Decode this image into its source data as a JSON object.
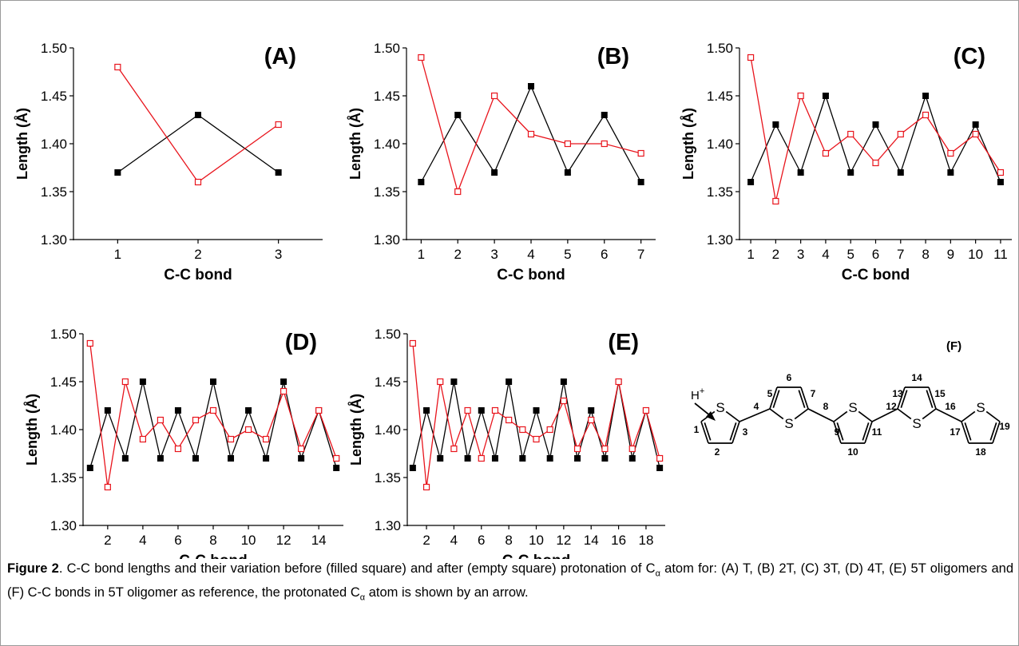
{
  "chart_data": [
    {
      "type": "line",
      "title": "(A)",
      "xlabel": "C-C bond",
      "ylabel": "Length (Å)",
      "ylim": [
        1.3,
        1.5
      ],
      "yticks": [
        "1.30",
        "1.35",
        "1.40",
        "1.45",
        "1.50"
      ],
      "xticks": [
        1,
        2,
        3
      ],
      "x": [
        1,
        2,
        3
      ],
      "series": [
        {
          "marker": "filled-square",
          "color": "#000000",
          "values": [
            1.37,
            1.43,
            1.37
          ]
        },
        {
          "marker": "empty-square",
          "color": "#e8141c",
          "values": [
            1.48,
            1.36,
            1.42
          ]
        }
      ]
    },
    {
      "type": "line",
      "title": "(B)",
      "xlabel": "C-C bond",
      "ylabel": "Length (Å)",
      "ylim": [
        1.3,
        1.5
      ],
      "yticks": [
        "1.30",
        "1.35",
        "1.40",
        "1.45",
        "1.50"
      ],
      "xticks": [
        1,
        2,
        3,
        4,
        5,
        6,
        7
      ],
      "x": [
        1,
        2,
        3,
        4,
        5,
        6,
        7
      ],
      "series": [
        {
          "marker": "filled-square",
          "color": "#000000",
          "values": [
            1.36,
            1.43,
            1.37,
            1.46,
            1.37,
            1.43,
            1.36
          ]
        },
        {
          "marker": "empty-square",
          "color": "#e8141c",
          "values": [
            1.49,
            1.35,
            1.45,
            1.41,
            1.4,
            1.4,
            1.39
          ]
        }
      ]
    },
    {
      "type": "line",
      "title": "(C)",
      "xlabel": "C-C bond",
      "ylabel": "Length (Å)",
      "ylim": [
        1.3,
        1.5
      ],
      "yticks": [
        "1.30",
        "1.35",
        "1.40",
        "1.45",
        "1.50"
      ],
      "xticks": [
        1,
        2,
        3,
        4,
        5,
        6,
        7,
        8,
        9,
        10,
        11
      ],
      "x": [
        1,
        2,
        3,
        4,
        5,
        6,
        7,
        8,
        9,
        10,
        11
      ],
      "series": [
        {
          "marker": "filled-square",
          "color": "#000000",
          "values": [
            1.36,
            1.42,
            1.37,
            1.45,
            1.37,
            1.42,
            1.37,
            1.45,
            1.37,
            1.42,
            1.36
          ]
        },
        {
          "marker": "empty-square",
          "color": "#e8141c",
          "values": [
            1.49,
            1.34,
            1.45,
            1.39,
            1.41,
            1.38,
            1.41,
            1.43,
            1.39,
            1.41,
            1.37
          ]
        }
      ]
    },
    {
      "type": "line",
      "title": "(D)",
      "xlabel": "C-C bond",
      "ylabel": "Length (Å)",
      "ylim": [
        1.3,
        1.5
      ],
      "yticks": [
        "1.30",
        "1.35",
        "1.40",
        "1.45",
        "1.50"
      ],
      "xticks": [
        2,
        4,
        6,
        8,
        10,
        12,
        14
      ],
      "x": [
        1,
        2,
        3,
        4,
        5,
        6,
        7,
        8,
        9,
        10,
        11,
        12,
        13,
        14,
        15
      ],
      "series": [
        {
          "marker": "filled-square",
          "color": "#000000",
          "values": [
            1.36,
            1.42,
            1.37,
            1.45,
            1.37,
            1.42,
            1.37,
            1.45,
            1.37,
            1.42,
            1.37,
            1.45,
            1.37,
            1.42,
            1.36
          ]
        },
        {
          "marker": "empty-square",
          "color": "#e8141c",
          "values": [
            1.49,
            1.34,
            1.45,
            1.39,
            1.41,
            1.38,
            1.41,
            1.42,
            1.39,
            1.4,
            1.39,
            1.44,
            1.38,
            1.42,
            1.37
          ]
        }
      ]
    },
    {
      "type": "line",
      "title": "(E)",
      "xlabel": "C-C bond",
      "ylabel": "Length (Å)",
      "ylim": [
        1.3,
        1.5
      ],
      "yticks": [
        "1.30",
        "1.35",
        "1.40",
        "1.45",
        "1.50"
      ],
      "xticks": [
        2,
        4,
        6,
        8,
        10,
        12,
        14,
        16,
        18
      ],
      "x": [
        1,
        2,
        3,
        4,
        5,
        6,
        7,
        8,
        9,
        10,
        11,
        12,
        13,
        14,
        15,
        16,
        17,
        18,
        19
      ],
      "series": [
        {
          "marker": "filled-square",
          "color": "#000000",
          "values": [
            1.36,
            1.42,
            1.37,
            1.45,
            1.37,
            1.42,
            1.37,
            1.45,
            1.37,
            1.42,
            1.37,
            1.45,
            1.37,
            1.42,
            1.37,
            1.45,
            1.37,
            1.42,
            1.36
          ]
        },
        {
          "marker": "empty-square",
          "color": "#e8141c",
          "values": [
            1.49,
            1.34,
            1.45,
            1.38,
            1.42,
            1.37,
            1.42,
            1.41,
            1.4,
            1.39,
            1.4,
            1.43,
            1.38,
            1.41,
            1.38,
            1.45,
            1.38,
            1.42,
            1.37
          ]
        }
      ]
    }
  ],
  "panel_f": {
    "title": "(F)",
    "proton_label": "H",
    "proton_charge": "+",
    "sulfur_label": "S",
    "bond_numbers": [
      "1",
      "2",
      "3",
      "4",
      "5",
      "6",
      "7",
      "8",
      "9",
      "10",
      "11",
      "12",
      "13",
      "14",
      "15",
      "16",
      "17",
      "18",
      "19"
    ]
  },
  "caption": {
    "lead": "Figure 2",
    "text_1": ". C-C bond lengths and their variation before (filled square) and after (empty square) protonation of C",
    "alpha_1": "α",
    "text_2": " atom for: (A) T, (B) 2T, (C) 3T, (D) 4T, (E) 5T oligomers and (F) C-C bonds in 5T oligomer as reference, the protonated C",
    "alpha_2": "α",
    "text_3": " atom is shown by an arrow."
  }
}
